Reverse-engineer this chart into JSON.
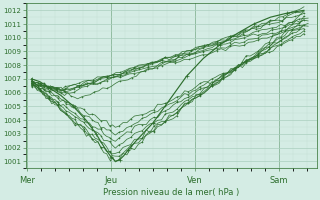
{
  "xlabel": "Pression niveau de la mer( hPa )",
  "bg_color": "#d4ece4",
  "plot_bg_color": "#d4ece4",
  "grid_major_color": "#aacfbe",
  "grid_minor_color": "#c2dfd4",
  "line_color": "#2d6e2d",
  "ylim": [
    1000.5,
    1012.5
  ],
  "yticks": [
    1001,
    1002,
    1003,
    1004,
    1005,
    1006,
    1007,
    1008,
    1009,
    1010,
    1011,
    1012
  ],
  "xtick_labels": [
    "Mer",
    "Jeu",
    "Ven",
    "Sam"
  ],
  "xtick_positions": [
    0,
    1,
    2,
    3
  ],
  "xlim": [
    -0.02,
    3.45
  ],
  "line_width": 0.55,
  "marker_size": 1.8
}
